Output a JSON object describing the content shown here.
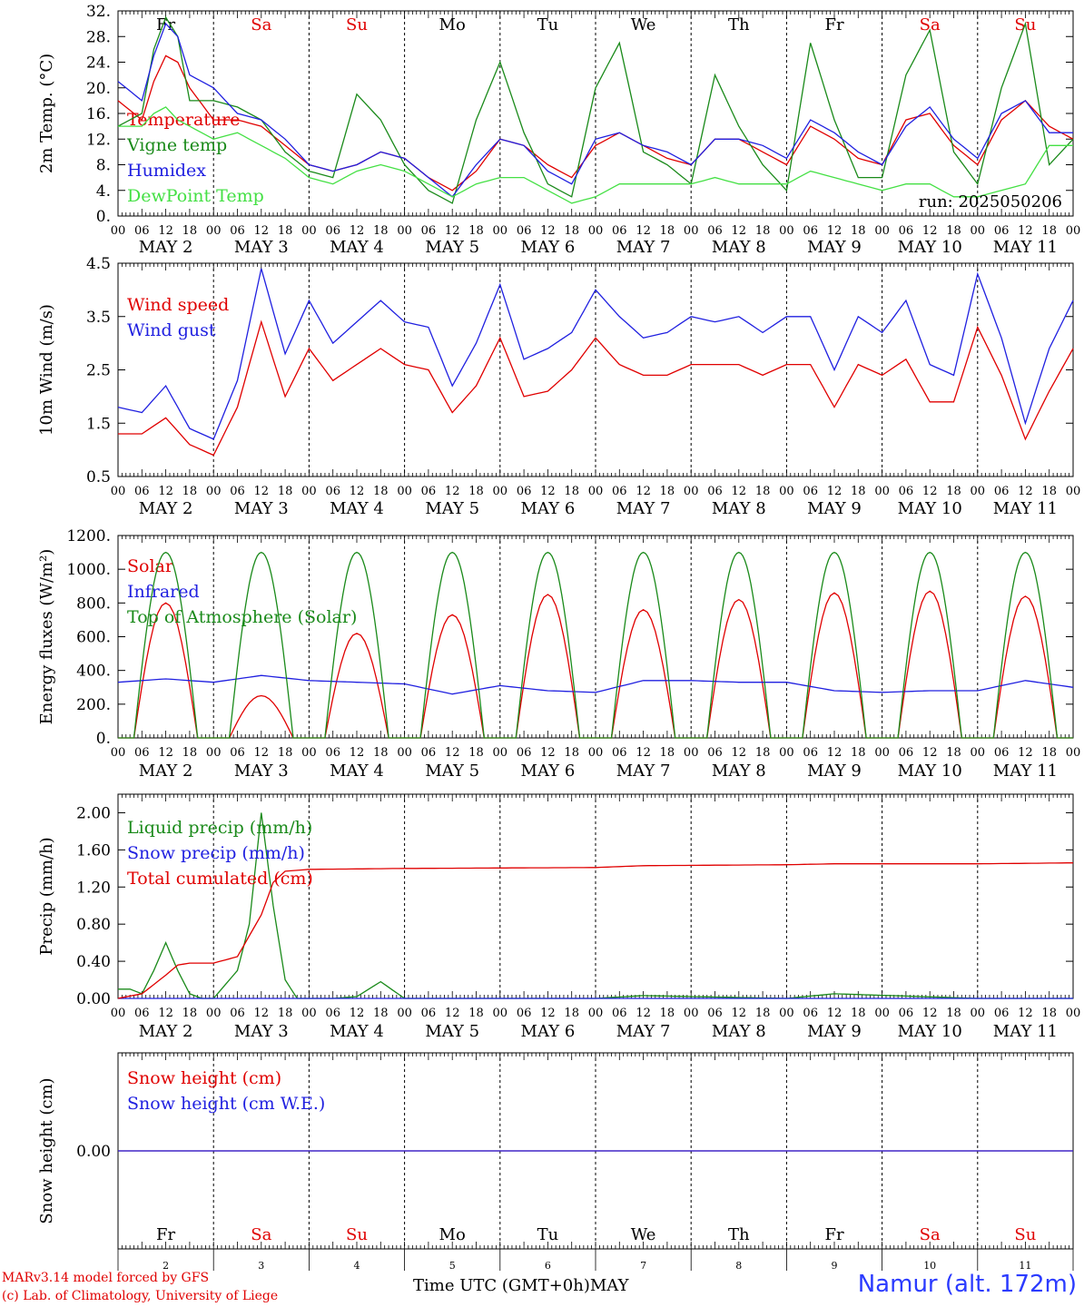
{
  "days": {
    "weekdays": [
      "Fr",
      "Sa",
      "Su",
      "Mo",
      "Tu",
      "We",
      "Th",
      "Fr",
      "Sa",
      "Su"
    ],
    "weekday_colors": [
      "#000000",
      "#e00000",
      "#e00000",
      "#000000",
      "#000000",
      "#000000",
      "#000000",
      "#000000",
      "#e00000",
      "#e00000"
    ],
    "date_labels": [
      "MAY  2",
      "MAY  3",
      "MAY  4",
      "MAY  5",
      "MAY  6",
      "MAY  7",
      "MAY  8",
      "MAY  9",
      "MAY 10",
      "MAY 11"
    ],
    "hour_ticks": [
      "00",
      "06",
      "12",
      "18"
    ],
    "hour_tick_final": "00",
    "day_numbers": [
      "2",
      "3",
      "4",
      "5",
      "6",
      "7",
      "8",
      "9",
      "10",
      "11"
    ]
  },
  "footer": {
    "credit_line1": "MARv3.14 model forced by GFS",
    "credit_line2": "(c) Lab. of Climatology, University of Liege",
    "time_axis_label": "Time UTC (GMT+0h)",
    "month_label": "MAY",
    "station": "Namur (alt. 172m)"
  },
  "chart_data": [
    {
      "type": "line",
      "ylabel": "2m Temp. (°C)",
      "ylim": [
        0,
        32
      ],
      "yticks": [
        "0.",
        "4.",
        "8.",
        "12.",
        "16.",
        "20.",
        "24.",
        "28.",
        "32."
      ],
      "ytick_values": [
        0,
        4,
        8,
        12,
        16,
        20,
        24,
        28,
        32
      ],
      "x_hours_from_start": [
        0,
        6,
        9,
        12,
        15,
        18,
        24,
        30,
        36,
        42,
        48,
        54,
        60,
        66,
        72,
        78,
        84,
        90,
        96,
        102,
        108,
        114,
        120,
        126,
        132,
        138,
        144,
        150,
        156,
        162,
        168,
        174,
        180,
        186,
        192,
        198,
        204,
        210,
        216,
        222,
        228,
        234,
        240
      ],
      "annotation": "run: 2025050206",
      "series": [
        {
          "name": "Temperature",
          "color": "#e00000",
          "values": [
            18,
            15,
            21,
            25,
            24,
            20,
            15,
            15,
            14,
            11,
            8,
            7,
            8,
            10,
            9,
            6,
            4,
            7,
            12,
            11,
            8,
            6,
            11,
            13,
            11,
            9,
            8,
            12,
            12,
            10,
            8,
            14,
            12,
            9,
            8,
            15,
            16,
            11,
            8,
            15,
            18,
            14,
            12
          ]
        },
        {
          "name": "Vigne temp",
          "color": "#1a8a1a",
          "values": [
            14,
            16,
            26,
            31,
            28,
            18,
            18,
            17,
            15,
            10,
            7,
            6,
            19,
            15,
            8,
            4,
            2,
            15,
            24,
            13,
            5,
            3,
            20,
            27,
            10,
            8,
            5,
            22,
            14,
            8,
            4,
            27,
            15,
            6,
            6,
            22,
            29,
            10,
            5,
            20,
            30,
            8,
            12
          ]
        },
        {
          "name": "Humidex",
          "color": "#2020e0",
          "values": [
            21,
            18,
            25,
            30,
            28,
            22,
            20,
            16,
            15,
            12,
            8,
            7,
            8,
            10,
            9,
            6,
            3,
            8,
            12,
            11,
            7,
            5,
            12,
            13,
            11,
            10,
            8,
            12,
            12,
            11,
            9,
            15,
            13,
            10,
            8,
            14,
            17,
            12,
            9,
            16,
            18,
            13,
            13
          ]
        },
        {
          "name": "DewPoint Temp",
          "color": "#44e044",
          "values": [
            14,
            14,
            16,
            17,
            15,
            14,
            12,
            13,
            11,
            9,
            6,
            5,
            7,
            8,
            7,
            5,
            3,
            5,
            6,
            6,
            4,
            2,
            3,
            5,
            5,
            5,
            5,
            6,
            5,
            5,
            5,
            7,
            6,
            5,
            4,
            5,
            5,
            3,
            3,
            4,
            5,
            11,
            11
          ]
        }
      ]
    },
    {
      "type": "line",
      "ylabel": "10m Wind (m/s)",
      "ylim": [
        0.5,
        4.5
      ],
      "yticks": [
        "0.5",
        "1.5",
        "2.5",
        "3.5",
        "4.5"
      ],
      "ytick_values": [
        0.5,
        1.5,
        2.5,
        3.5,
        4.5
      ],
      "x_hours_from_start": [
        0,
        6,
        12,
        18,
        24,
        30,
        36,
        42,
        48,
        54,
        60,
        66,
        72,
        78,
        84,
        90,
        96,
        102,
        108,
        114,
        120,
        126,
        132,
        138,
        144,
        150,
        156,
        162,
        168,
        174,
        180,
        186,
        192,
        198,
        204,
        210,
        216,
        222,
        228,
        234,
        240
      ],
      "series": [
        {
          "name": "Wind speed",
          "color": "#e00000",
          "values": [
            1.3,
            1.3,
            1.6,
            1.1,
            0.9,
            1.8,
            3.4,
            2.0,
            2.9,
            2.3,
            2.6,
            2.9,
            2.6,
            2.5,
            1.7,
            2.2,
            3.1,
            2.0,
            2.1,
            2.5,
            3.1,
            2.6,
            2.4,
            2.4,
            2.6,
            2.6,
            2.6,
            2.4,
            2.6,
            2.6,
            1.8,
            2.6,
            2.4,
            2.7,
            1.9,
            1.9,
            3.3,
            2.4,
            1.2,
            2.1,
            2.9
          ]
        },
        {
          "name": "Wind gust",
          "color": "#2020e0",
          "values": [
            1.8,
            1.7,
            2.2,
            1.4,
            1.2,
            2.3,
            4.4,
            2.8,
            3.8,
            3.0,
            3.4,
            3.8,
            3.4,
            3.3,
            2.2,
            3.0,
            4.1,
            2.7,
            2.9,
            3.2,
            4.0,
            3.5,
            3.1,
            3.2,
            3.5,
            3.4,
            3.5,
            3.2,
            3.5,
            3.5,
            2.5,
            3.5,
            3.2,
            3.8,
            2.6,
            2.4,
            4.3,
            3.1,
            1.5,
            2.9,
            3.8
          ]
        }
      ]
    },
    {
      "type": "line",
      "ylabel": "Energy fluxes (W/m²)",
      "ylim": [
        0,
        1200
      ],
      "yticks": [
        "0.",
        "200.",
        "400.",
        "600.",
        "800.",
        "1000.",
        "1200."
      ],
      "ytick_values": [
        0,
        200,
        400,
        600,
        800,
        1000,
        1200
      ],
      "series": [
        {
          "name": "Solar",
          "color": "#e00000",
          "daily_peaks": [
            800,
            250,
            620,
            730,
            850,
            760,
            820,
            860,
            870,
            840
          ]
        },
        {
          "name": "Infrared",
          "color": "#2020e0",
          "x_hours_from_start": [
            0,
            12,
            24,
            36,
            48,
            60,
            72,
            84,
            96,
            108,
            120,
            132,
            144,
            156,
            168,
            180,
            192,
            204,
            216,
            228,
            240
          ],
          "values": [
            330,
            350,
            330,
            370,
            340,
            330,
            320,
            260,
            310,
            280,
            270,
            340,
            340,
            330,
            330,
            280,
            270,
            280,
            280,
            340,
            300
          ]
        },
        {
          "name": "Top of Atmosphere (Solar)",
          "color": "#1a8a1a",
          "daily_peak": 1100
        }
      ]
    },
    {
      "type": "line",
      "ylabel": "Precip (mm/h)",
      "ylim": [
        0,
        2.2
      ],
      "yticks": [
        "0.00",
        "0.40",
        "0.80",
        "1.20",
        "1.60",
        "2.00"
      ],
      "ytick_values": [
        0,
        0.4,
        0.8,
        1.2,
        1.6,
        2.0
      ],
      "series": [
        {
          "name": "Liquid precip (mm/h)",
          "color": "#1a8a1a",
          "x_hours_from_start": [
            0,
            3,
            6,
            9,
            12,
            15,
            18,
            21,
            24,
            30,
            33,
            36,
            39,
            42,
            45,
            48,
            54,
            60,
            66,
            72,
            120,
            132,
            168,
            180,
            216,
            240
          ],
          "values": [
            0.1,
            0.1,
            0.05,
            0.3,
            0.6,
            0.3,
            0.05,
            0,
            0,
            0.3,
            0.8,
            2.0,
            1.0,
            0.2,
            0,
            0,
            0,
            0.02,
            0.18,
            0,
            0,
            0.03,
            0,
            0.05,
            0,
            0
          ]
        },
        {
          "name": "Snow precip (mm/h)",
          "color": "#2020e0",
          "x_hours_from_start": [
            0,
            240
          ],
          "values": [
            0,
            0
          ]
        },
        {
          "name": "Total cumulated (cm)",
          "color": "#e00000",
          "x_hours_from_start": [
            0,
            6,
            12,
            15,
            18,
            24,
            30,
            36,
            39,
            42,
            48,
            72,
            120,
            132,
            168,
            180,
            216,
            240
          ],
          "values": [
            0,
            0.05,
            0.25,
            0.36,
            0.38,
            0.38,
            0.45,
            0.9,
            1.25,
            1.37,
            1.39,
            1.4,
            1.41,
            1.43,
            1.44,
            1.45,
            1.45,
            1.46
          ]
        }
      ]
    },
    {
      "type": "line",
      "ylabel": "Snow height (cm)",
      "ylim": [
        -1,
        1
      ],
      "yticks": [
        "0.00"
      ],
      "ytick_values": [
        0
      ],
      "series": [
        {
          "name": "Snow height (cm)",
          "color": "#e00000",
          "x_hours_from_start": [
            0,
            240
          ],
          "values": [
            0,
            0
          ]
        },
        {
          "name": "Snow height (cm W.E.)",
          "color": "#2020e0",
          "x_hours_from_start": [
            0,
            240
          ],
          "values": [
            0,
            0
          ]
        }
      ]
    }
  ]
}
